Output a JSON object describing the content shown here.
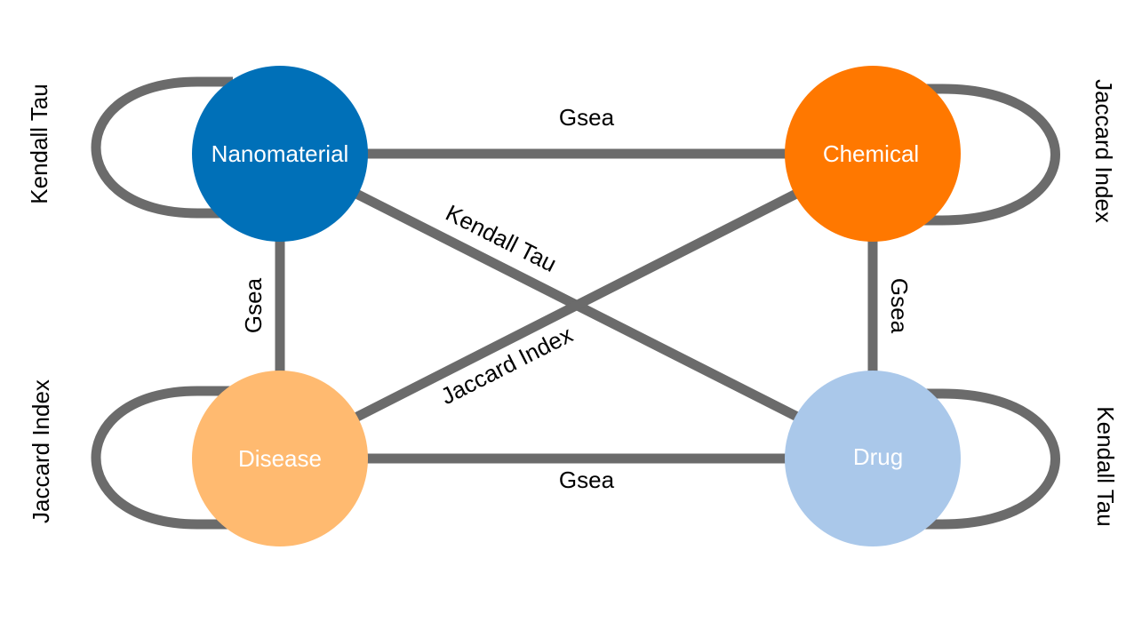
{
  "nodes": {
    "nanomaterial": {
      "label": "Nanomaterial",
      "color": "#0070b8"
    },
    "chemical": {
      "label": "Chemical",
      "color": "#ff7800"
    },
    "disease": {
      "label": "Disease",
      "color": "#ffba70"
    },
    "drug": {
      "label": "Drug",
      "color": "#aac8ea"
    }
  },
  "edges": {
    "nanomaterial_chemical": "Gsea",
    "nanomaterial_disease": "Gsea",
    "chemical_drug": "Gsea",
    "disease_drug": "Gsea",
    "nanomaterial_drug": "Kendall Tau",
    "disease_chemical": "Jaccard Index"
  },
  "self_loops": {
    "nanomaterial": "Kendall Tau",
    "chemical": "Jaccard Index",
    "disease": "Jaccard Index",
    "drug": "Kendall Tau"
  },
  "edge_color": "#6b6b6b"
}
